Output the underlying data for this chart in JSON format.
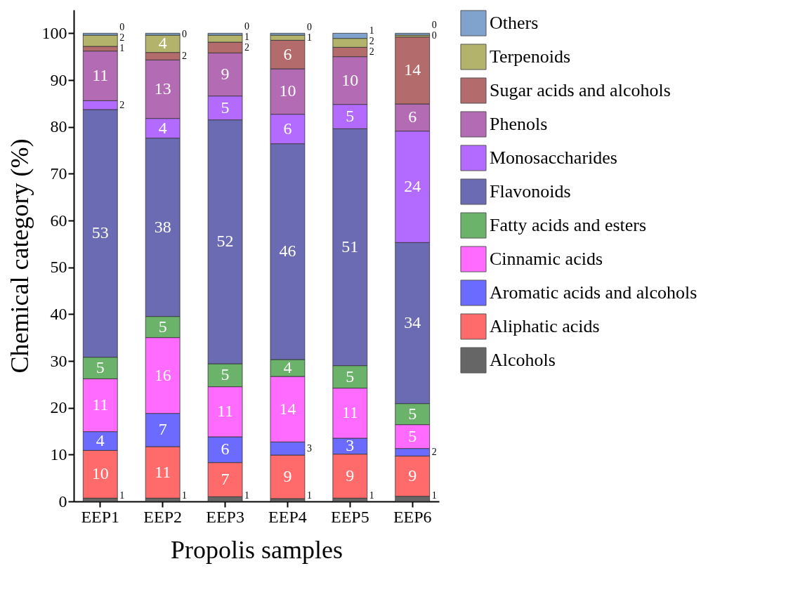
{
  "chart_data": {
    "type": "bar",
    "stacked": true,
    "xlabel": "Propolis samples",
    "ylabel": "Chemical category (%)",
    "categories": [
      "EEP1",
      "EEP2",
      "EEP3",
      "EEP4",
      "EEP5",
      "EEP6"
    ],
    "ylim": [
      0,
      105
    ],
    "yticks": [
      0,
      10,
      20,
      30,
      40,
      50,
      60,
      70,
      80,
      90,
      100
    ],
    "grid": false,
    "legend": "right",
    "series": [
      {
        "name": "Alcohols",
        "color": "#666666",
        "values": [
          0.7,
          0.7,
          1.0,
          0.6,
          0.7,
          1.1
        ],
        "value_labels": [
          "1",
          "1",
          "1",
          "1",
          "1",
          "1"
        ]
      },
      {
        "name": "Aliphatic acids",
        "color": "#ff6b6b",
        "values": [
          10.2,
          11.0,
          7.3,
          9.3,
          9.4,
          8.6
        ],
        "value_labels": [
          "10",
          "11",
          "7",
          "9",
          "9",
          "9"
        ]
      },
      {
        "name": "Aromatic acids and alcohols",
        "color": "#6b6bff",
        "values": [
          4.0,
          7.1,
          5.5,
          2.8,
          3.4,
          1.6
        ],
        "value_labels": [
          "4",
          "7",
          "6",
          "3",
          "3",
          "2"
        ]
      },
      {
        "name": "Cinnamic acids",
        "color": "#ff6bff",
        "values": [
          11.3,
          16.2,
          10.7,
          14.0,
          10.7,
          5.1
        ],
        "value_labels": [
          "11",
          "16",
          "11",
          "14",
          "11",
          "5"
        ]
      },
      {
        "name": "Fatty acids and esters",
        "color": "#6bb36b",
        "values": [
          4.6,
          4.5,
          4.9,
          3.6,
          4.8,
          4.5
        ],
        "value_labels": [
          "5",
          "5",
          "5",
          "4",
          "5",
          "5"
        ]
      },
      {
        "name": "Flavonoids",
        "color": "#6b6bb3",
        "values": [
          52.9,
          38.1,
          52.1,
          46.1,
          50.6,
          34.4
        ],
        "value_labels": [
          "53",
          "38",
          "52",
          "46",
          "51",
          "34"
        ]
      },
      {
        "name": "Monosaccharides",
        "color": "#b36bff",
        "values": [
          1.9,
          4.2,
          5.1,
          6.3,
          5.2,
          23.8
        ],
        "value_labels": [
          "2",
          "4",
          "5",
          "6",
          "5",
          "24"
        ]
      },
      {
        "name": "Phenols",
        "color": "#b36bb3",
        "values": [
          10.6,
          12.5,
          9.2,
          9.7,
          10.2,
          5.8
        ],
        "value_labels": [
          "11",
          "13",
          "9",
          "10",
          "10",
          "6"
        ]
      },
      {
        "name": "Sugar acids and alcohols",
        "color": "#b36b6b",
        "values": [
          1.0,
          1.6,
          2.3,
          6.1,
          2.0,
          14.3
        ],
        "value_labels": [
          "1",
          "2",
          "2",
          "6",
          "2",
          "14"
        ]
      },
      {
        "name": "Terpenoids",
        "color": "#b3b36b",
        "values": [
          2.4,
          3.7,
          1.5,
          1.1,
          1.9,
          0.4
        ],
        "value_labels": [
          "2",
          "4",
          "1",
          "1",
          "2",
          "0"
        ]
      },
      {
        "name": "Others",
        "color": "#7fa3cc",
        "values": [
          0.4,
          0.4,
          0.4,
          0.4,
          1.1,
          0.4
        ],
        "value_labels": [
          "0",
          "0",
          "0",
          "0",
          "1",
          "0"
        ]
      }
    ]
  }
}
